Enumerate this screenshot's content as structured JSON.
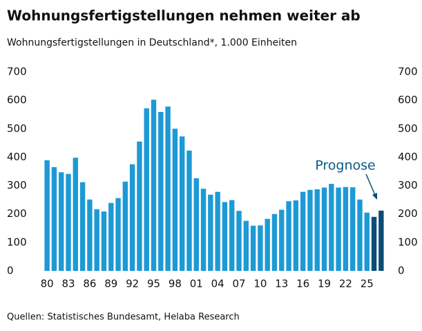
{
  "chart_data": {
    "type": "bar",
    "title": "Wohnungsfertigstellungen nehmen weiter ab",
    "subtitle": "Wohnungsfertigstellungen in Deutschland*, 1.000 Einheiten",
    "source": "Quellen: Statistisches Bundesamt, Helaba Research",
    "annotation": "Prognose",
    "categories": [
      "80",
      null,
      null,
      "83",
      null,
      null,
      "86",
      null,
      null,
      "89",
      null,
      null,
      "92",
      null,
      null,
      "95",
      null,
      null,
      "98",
      null,
      null,
      "01",
      null,
      null,
      "04",
      null,
      null,
      "07",
      null,
      null,
      "10",
      null,
      null,
      "13",
      null,
      null,
      "16",
      null,
      null,
      "19",
      null,
      null,
      "22",
      null,
      null,
      "25",
      null,
      null
    ],
    "values": [
      389,
      365,
      347,
      341,
      398,
      312,
      251,
      217,
      209,
      239,
      256,
      314,
      375,
      455,
      572,
      602,
      559,
      578,
      500,
      473,
      423,
      326,
      289,
      268,
      278,
      242,
      249,
      211,
      176,
      159,
      160,
      183,
      200,
      215,
      245,
      248,
      278,
      285,
      287,
      293,
      306,
      293,
      295,
      294,
      251,
      205,
      190,
      212
    ],
    "colors": [
      "#1d9ad6",
      "#1d9ad6",
      "#1d9ad6",
      "#1d9ad6",
      "#1d9ad6",
      "#1d9ad6",
      "#1d9ad6",
      "#1d9ad6",
      "#1d9ad6",
      "#1d9ad6",
      "#1d9ad6",
      "#1d9ad6",
      "#1d9ad6",
      "#1d9ad6",
      "#1d9ad6",
      "#1d9ad6",
      "#1d9ad6",
      "#1d9ad6",
      "#1d9ad6",
      "#1d9ad6",
      "#1d9ad6",
      "#1d9ad6",
      "#1d9ad6",
      "#1d9ad6",
      "#1d9ad6",
      "#1d9ad6",
      "#1d9ad6",
      "#1d9ad6",
      "#1d9ad6",
      "#1d9ad6",
      "#1d9ad6",
      "#1d9ad6",
      "#1d9ad6",
      "#1d9ad6",
      "#1d9ad6",
      "#1d9ad6",
      "#1d9ad6",
      "#1d9ad6",
      "#1d9ad6",
      "#1d9ad6",
      "#1d9ad6",
      "#1d9ad6",
      "#1d9ad6",
      "#1d9ad6",
      "#1d9ad6",
      "#1d9ad6",
      "#0b4c75",
      "#0b4c75"
    ],
    "ylim": [
      0,
      700
    ],
    "yticks": [
      0,
      100,
      200,
      300,
      400,
      500,
      600,
      700
    ],
    "grid": false
  }
}
